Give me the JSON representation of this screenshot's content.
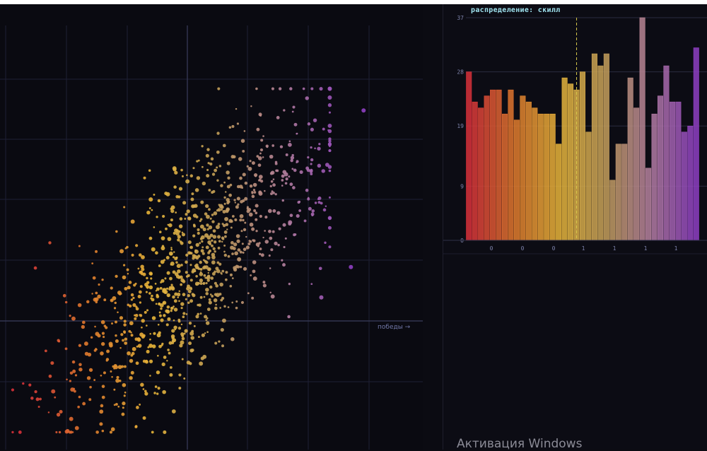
{
  "hist": {
    "title": "распределение: скилл",
    "chart": {
      "type": "bar",
      "ytick_labels": [
        "37",
        "28",
        "19",
        "9",
        "0"
      ],
      "xtick_labels": [
        "0",
        "0",
        "0",
        "1",
        "1",
        "1",
        "1"
      ],
      "values": [
        28,
        23,
        22,
        24,
        25,
        25,
        21,
        25,
        20,
        24,
        23,
        22,
        21,
        21,
        21,
        16,
        27,
        26,
        25,
        28,
        18,
        31,
        29,
        31,
        10,
        16,
        16,
        27,
        22,
        37,
        12,
        21,
        24,
        29,
        23,
        23,
        18,
        19,
        32
      ],
      "ylim": [
        0,
        37
      ],
      "marker_bin_index": 18.5
    }
  },
  "scatter": {
    "xaxis_label": "победы →",
    "chart": {
      "type": "scatter",
      "note": "",
      "seed": 7,
      "n": 1000,
      "outliers": [
        {
          "x": 0.86,
          "y": 0.78
        },
        {
          "x": 0.83,
          "y": 0.42
        },
        {
          "x": 0.76,
          "y": 0.35
        }
      ]
    }
  },
  "watermark": "Активация Windows",
  "colors": {
    "gradient": [
      "#d8313a",
      "#e07a2d",
      "#e8b63a",
      "#c4a05a",
      "#b47fa0",
      "#8e3fc2"
    ],
    "grid": "#1f2035",
    "axis": "#3b3d5c",
    "marker_line": "#d6c84a"
  }
}
